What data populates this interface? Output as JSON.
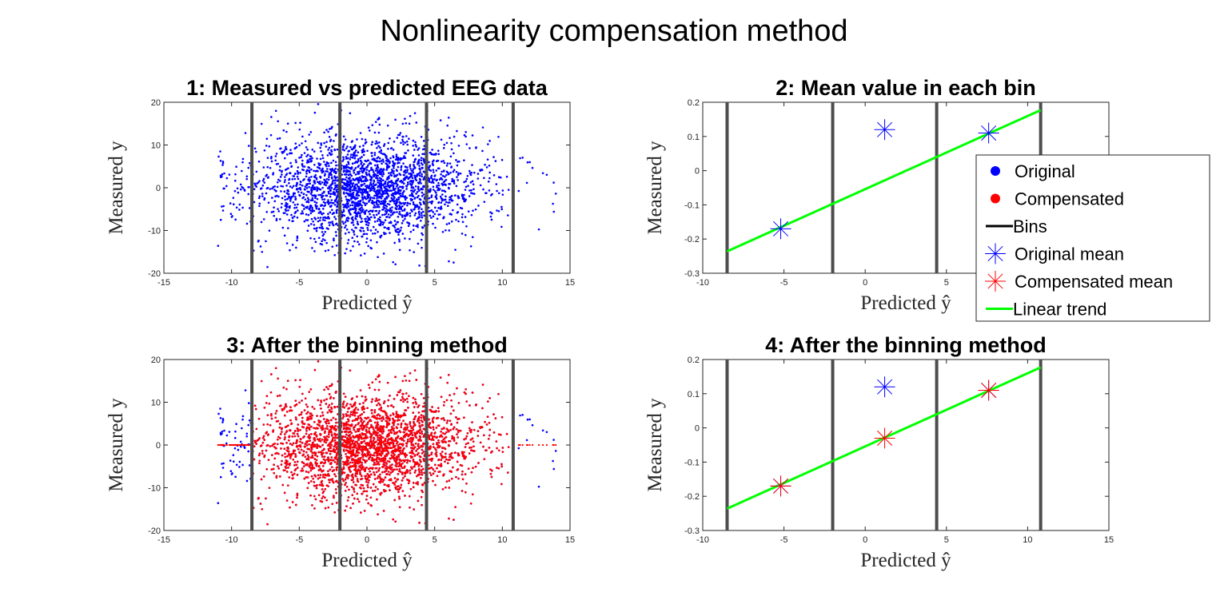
{
  "figure": {
    "title": "Nonlinearity compensation method"
  },
  "chart_data": [
    {
      "type": "scatter",
      "title": "1: Measured vs predicted EEG data",
      "xlabel": "Predicted ŷ",
      "ylabel": "Measured y",
      "xlim": [
        -15,
        15
      ],
      "ylim": [
        -20,
        20
      ],
      "xticks": [
        -15,
        -10,
        -5,
        0,
        5,
        10,
        15
      ],
      "yticks": [
        -20,
        -10,
        0,
        10,
        20
      ],
      "bins": [
        -8.5,
        -2.0,
        4.4,
        10.8
      ],
      "series": [
        {
          "name": "Original",
          "color": "#0000ff",
          "kind": "cloud",
          "n": 2600,
          "seed": 11
        }
      ]
    },
    {
      "type": "line",
      "title": "2: Mean value in each bin",
      "xlabel": "Predicted ŷ",
      "ylabel": "Measured y",
      "xlim": [
        -10,
        15
      ],
      "ylim": [
        -0.3,
        0.2
      ],
      "xticks": [
        -10,
        -5,
        0,
        5,
        10,
        15
      ],
      "yticks": [
        -0.3,
        -0.2,
        -0.1,
        0,
        0.1,
        0.2
      ],
      "bins": [
        -8.5,
        -2.0,
        4.4,
        10.8
      ],
      "series": [
        {
          "name": "Original mean",
          "color": "#0000ff",
          "kind": "asterisk",
          "x": [
            -5.2,
            1.2,
            7.6
          ],
          "y": [
            -0.17,
            0.12,
            0.11
          ]
        },
        {
          "name": "Linear trend",
          "color": "#00ff00",
          "kind": "line",
          "x": [
            -8.5,
            10.8
          ],
          "y": [
            -0.236,
            0.177
          ]
        }
      ]
    },
    {
      "type": "scatter",
      "title": "3: After the binning method",
      "xlabel": "Predicted ŷ",
      "ylabel": "Measured y",
      "xlim": [
        -15,
        15
      ],
      "ylim": [
        -20,
        20
      ],
      "xticks": [
        -15,
        -10,
        -5,
        0,
        5,
        10,
        15
      ],
      "yticks": [
        -20,
        -10,
        0,
        10,
        20
      ],
      "bins": [
        -8.5,
        -2.0,
        4.4,
        10.8
      ],
      "series": [
        {
          "name": "Original",
          "color": "#0000ff",
          "kind": "cloud",
          "n": 2600,
          "seed": 11
        },
        {
          "name": "Compensated",
          "color": "#ff0000",
          "kind": "cloud-compensated",
          "n": 2600,
          "seed": 11
        }
      ]
    },
    {
      "type": "line",
      "title": "4: After the binning method",
      "xlabel": "Predicted ŷ",
      "ylabel": "Measured y",
      "xlim": [
        -10,
        15
      ],
      "ylim": [
        -0.3,
        0.2
      ],
      "xticks": [
        -10,
        -5,
        0,
        5,
        10,
        15
      ],
      "yticks": [
        -0.3,
        -0.2,
        -0.1,
        0,
        0.1,
        0.2
      ],
      "bins": [
        -8.5,
        -2.0,
        4.4,
        10.8
      ],
      "series": [
        {
          "name": "Original mean",
          "color": "#0000ff",
          "kind": "asterisk",
          "x": [
            -5.2,
            1.2,
            7.6
          ],
          "y": [
            -0.17,
            0.12,
            0.11
          ]
        },
        {
          "name": "Compensated mean",
          "color": "#ff0000",
          "kind": "asterisk",
          "x": [
            -5.2,
            1.2,
            7.6
          ],
          "y": [
            -0.17,
            -0.03,
            0.11
          ]
        },
        {
          "name": "Linear trend",
          "color": "#00ff00",
          "kind": "line",
          "x": [
            -8.5,
            10.8
          ],
          "y": [
            -0.236,
            0.177
          ]
        }
      ]
    }
  ],
  "legend": {
    "placement": "right",
    "items": [
      {
        "label": "Original",
        "marker": "dot",
        "color": "#0000ff"
      },
      {
        "label": "Compensated",
        "marker": "dot",
        "color": "#ff0000"
      },
      {
        "label": "Bins",
        "marker": "line",
        "color": "#000000"
      },
      {
        "label": "Original mean",
        "marker": "asterisk",
        "color": "#0000ff"
      },
      {
        "label": "Compensated mean",
        "marker": "asterisk",
        "color": "#ff0000"
      },
      {
        "label": "Linear trend",
        "marker": "line",
        "color": "#00ff00"
      }
    ]
  },
  "colors": {
    "bins": "#4d4d4d",
    "axes": "#262626"
  }
}
